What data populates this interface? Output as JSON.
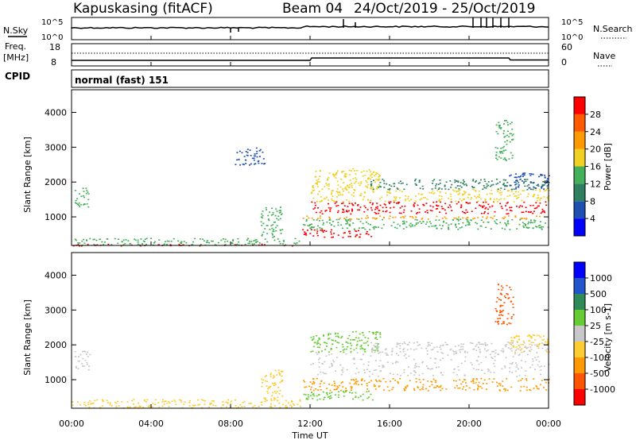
{
  "header": {
    "station": "Kapuskasing (fitACF)",
    "beam": "Beam 04",
    "dates": "24/Oct/2019 - 25/Oct/2019"
  },
  "noise_panel": {
    "left_label": "N.Sky",
    "right_label": "N.Search",
    "left_ticks": [
      "10^5",
      "10^0"
    ],
    "right_ticks": [
      "10^5",
      "10^0"
    ]
  },
  "freq_panel": {
    "left_label_line1": "Freq.",
    "left_label_line2": "[MHz]",
    "left_ticks": [
      "18",
      "8"
    ],
    "right_label": "Nave",
    "right_ticks": [
      "60",
      "0"
    ]
  },
  "cpid": {
    "label": "CPID",
    "mode_text": "normal (fast) 151"
  },
  "colors": {
    "power_scale": [
      "#0000ff",
      "#1f4fb0",
      "#2e8060",
      "#44b05a",
      "#f0d020",
      "#ff9a00",
      "#ff5a00",
      "#ff0000"
    ],
    "velocity_scale": [
      "#ff0000",
      "#ff5500",
      "#ff9900",
      "#ffcc33",
      "#c8c8c8",
      "#66cc33",
      "#2e8b57",
      "#2255cc",
      "#0000ff"
    ]
  },
  "chart_data": [
    {
      "type": "heatmap",
      "name": "power",
      "ylabel": "Slant Range [km]",
      "yticks": [
        1000,
        2000,
        3000,
        4000
      ],
      "ylim": [
        180,
        4650
      ],
      "xlim_hours": [
        0,
        24
      ],
      "colorbar": {
        "label": "Power [dB]",
        "ticks": [
          "4",
          "8",
          "12",
          "16",
          "20",
          "24",
          "28"
        ],
        "range": [
          0,
          32
        ]
      },
      "regions": [
        {
          "t0": 0.0,
          "t1": 11.5,
          "r0": 200,
          "r1": 400,
          "v": 14
        },
        {
          "t0": 0.0,
          "t1": 11.5,
          "r0": 180,
          "r1": 230,
          "v": 28
        },
        {
          "t0": 0.1,
          "t1": 0.9,
          "r0": 1300,
          "r1": 1850,
          "v": 12
        },
        {
          "t0": 8.2,
          "t1": 9.7,
          "r0": 2500,
          "r1": 3000,
          "v": 8
        },
        {
          "t0": 9.5,
          "t1": 10.6,
          "r0": 400,
          "r1": 1300,
          "v": 12
        },
        {
          "t0": 11.6,
          "t1": 15.2,
          "r0": 420,
          "r1": 650,
          "v": 28
        },
        {
          "t0": 11.6,
          "t1": 24.0,
          "r0": 650,
          "r1": 950,
          "v": 16
        },
        {
          "t0": 11.6,
          "t1": 24.0,
          "r0": 950,
          "r1": 1050,
          "v": 22
        },
        {
          "t0": 12.0,
          "t1": 24.0,
          "r0": 1100,
          "r1": 1450,
          "v": 26
        },
        {
          "t0": 12.0,
          "t1": 24.0,
          "r0": 1450,
          "r1": 1800,
          "v": 14
        },
        {
          "t0": 12.0,
          "t1": 15.5,
          "r0": 1800,
          "r1": 2400,
          "v": 16
        },
        {
          "t0": 15.0,
          "t1": 24.0,
          "r0": 1800,
          "r1": 2100,
          "v": 10
        },
        {
          "t0": 21.3,
          "t1": 22.2,
          "r0": 2600,
          "r1": 3800,
          "v": 18
        },
        {
          "t0": 22.0,
          "t1": 24.0,
          "r0": 1800,
          "r1": 2300,
          "v": 10
        }
      ]
    },
    {
      "type": "heatmap",
      "name": "velocity",
      "ylabel": "Slant Range [km]",
      "yticks": [
        1000,
        2000,
        3000,
        4000
      ],
      "ylim": [
        180,
        4650
      ],
      "xlim_hours": [
        0,
        24
      ],
      "xticks": [
        "00:00",
        "04:00",
        "08:00",
        "12:00",
        "16:00",
        "20:00",
        "00:00"
      ],
      "xlabel": "Time UT",
      "colorbar": {
        "label": "Velocity [m s-1]",
        "ticks": [
          "-1000",
          "-500",
          "-100",
          "-25",
          "25",
          "100",
          "500",
          "1000"
        ]
      },
      "regions": [
        {
          "t0": 0.0,
          "t1": 11.5,
          "r0": 200,
          "r1": 450,
          "cat": 3
        },
        {
          "t0": 0.1,
          "t1": 0.9,
          "r0": 1300,
          "r1": 1850,
          "cat": 3
        },
        {
          "t0": 9.5,
          "t1": 10.6,
          "r0": 400,
          "r1": 1300,
          "cat": 3
        },
        {
          "t0": 11.6,
          "t1": 15.2,
          "r0": 420,
          "r1": 700,
          "cat": 5
        },
        {
          "t0": 11.6,
          "t1": 24.0,
          "r0": 700,
          "r1": 1050,
          "cat": 2
        },
        {
          "t0": 12.0,
          "t1": 24.0,
          "r0": 1100,
          "r1": 1800,
          "cat": 4
        },
        {
          "t0": 12.0,
          "t1": 15.5,
          "r0": 1800,
          "r1": 2400,
          "cat": 5
        },
        {
          "t0": 15.0,
          "t1": 24.0,
          "r0": 1800,
          "r1": 2100,
          "cat": 4
        },
        {
          "t0": 21.3,
          "t1": 22.2,
          "r0": 2600,
          "r1": 3800,
          "cat": 1
        },
        {
          "t0": 22.0,
          "t1": 24.0,
          "r0": 1800,
          "r1": 2300,
          "cat": 4
        }
      ]
    }
  ]
}
